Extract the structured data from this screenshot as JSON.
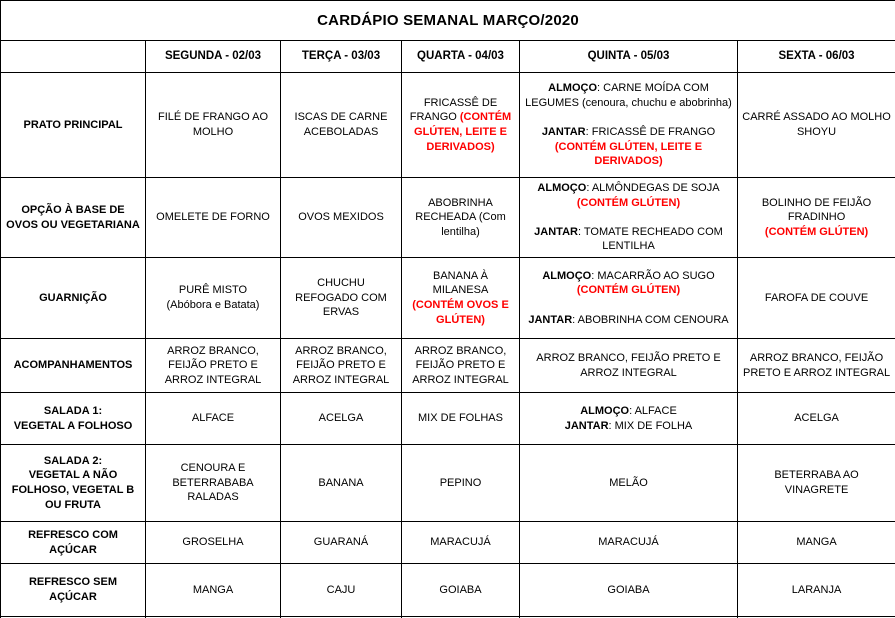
{
  "title": "CARDÁPIO SEMANAL MARÇO/2020",
  "colors": {
    "alert_red": "#ff0000",
    "text": "#000000",
    "border": "#000000",
    "background": "#ffffff"
  },
  "header": [
    "",
    "SEGUNDA - 02/03",
    "TERÇA - 03/03",
    "QUARTA - 04/03",
    "QUINTA - 05/03",
    "SEXTA - 06/03"
  ],
  "rows": [
    {
      "label": [
        {
          "t": "PRATO PRINCIPAL"
        }
      ],
      "cells": [
        [
          {
            "t": "FILÉ DE FRANGO AO MOLHO"
          }
        ],
        [
          {
            "t": "ISCAS DE CARNE ACEBOLADAS"
          }
        ],
        [
          {
            "t": "FRICASSÊ DE FRANGO "
          },
          {
            "t": "(CONTÉM GLÚTEN, LEITE E DERIVADOS)",
            "r": 1
          }
        ],
        [
          {
            "t": "ALMOÇO",
            "b": 1
          },
          {
            "t": ": CARNE MOÍDA COM LEGUMES  (cenoura, chuchu e abobrinha)"
          },
          {
            "br": 2
          },
          {
            "t": "JANTAR",
            "b": 1
          },
          {
            "t": ": FRICASSÊ DE FRANGO"
          },
          {
            "br": 1
          },
          {
            "t": "(CONTÉM GLÚTEN, LEITE E DERIVADOS)",
            "r": 1
          }
        ],
        [
          {
            "t": "CARRÉ ASSADO AO MOLHO SHOYU"
          }
        ]
      ]
    },
    {
      "label": [
        {
          "t": "OPÇÃO À BASE DE OVOS OU VEGETARIANA"
        }
      ],
      "cells": [
        [
          {
            "t": "OMELETE DE FORNO"
          }
        ],
        [
          {
            "t": "OVOS MEXIDOS"
          }
        ],
        [
          {
            "t": "ABOBRINHA RECHEADA    (Com lentilha)"
          }
        ],
        [
          {
            "t": "ALMOÇO",
            "b": 1
          },
          {
            "t": ": ALMÔNDEGAS DE SOJA"
          },
          {
            "br": 1
          },
          {
            "t": "(CONTÉM GLÚTEN)",
            "r": 1
          },
          {
            "br": 2
          },
          {
            "t": "JANTAR",
            "b": 1
          },
          {
            "t": ": TOMATE RECHEADO COM LENTILHA"
          }
        ],
        [
          {
            "t": "BOLINHO DE FEIJÃO FRADINHO"
          },
          {
            "br": 1
          },
          {
            "t": "(CONTÉM GLÚTEN)",
            "r": 1
          }
        ]
      ]
    },
    {
      "label": [
        {
          "t": "GUARNIÇÃO"
        }
      ],
      "cells": [
        [
          {
            "t": "PURÊ MISTO"
          },
          {
            "br": 1
          },
          {
            "t": "(Abóbora e Batata)"
          }
        ],
        [
          {
            "t": "CHUCHU REFOGADO COM ERVAS"
          }
        ],
        [
          {
            "t": "BANANA À MILANESA"
          },
          {
            "br": 1
          },
          {
            "t": "(CONTÉM OVOS E GLÚTEN)",
            "r": 1
          }
        ],
        [
          {
            "t": "ALMOÇO",
            "b": 1
          },
          {
            "t": ": MACARRÃO AO SUGO"
          },
          {
            "br": 1
          },
          {
            "t": "(CONTÉM GLÚTEN)",
            "r": 1
          },
          {
            "br": 2
          },
          {
            "t": "JANTAR",
            "b": 1
          },
          {
            "t": ": ABOBRINHA COM CENOURA"
          }
        ],
        [
          {
            "t": "FAROFA DE COUVE"
          }
        ]
      ]
    },
    {
      "label": [
        {
          "t": "ACOMPANHAMENTOS"
        }
      ],
      "cells": [
        [
          {
            "t": "ARROZ BRANCO, FEIJÃO PRETO E ARROZ INTEGRAL"
          }
        ],
        [
          {
            "t": "ARROZ BRANCO, FEIJÃO PRETO E ARROZ INTEGRAL"
          }
        ],
        [
          {
            "t": "ARROZ BRANCO, FEIJÃO PRETO E ARROZ INTEGRAL"
          }
        ],
        [
          {
            "t": "ARROZ BRANCO, FEIJÃO PRETO E ARROZ INTEGRAL"
          }
        ],
        [
          {
            "t": "ARROZ BRANCO, FEIJÃO PRETO E ARROZ INTEGRAL"
          }
        ]
      ]
    },
    {
      "label": [
        {
          "t": "SALADA 1:"
        },
        {
          "br": 1
        },
        {
          "t": "VEGETAL A FOLHOSO"
        }
      ],
      "cells": [
        [
          {
            "t": "ALFACE"
          }
        ],
        [
          {
            "t": "ACELGA"
          }
        ],
        [
          {
            "t": "MIX DE FOLHAS"
          }
        ],
        [
          {
            "t": "ALMOÇO",
            "b": 1
          },
          {
            "t": ": ALFACE"
          },
          {
            "br": 1
          },
          {
            "t": "JANTAR",
            "b": 1
          },
          {
            "t": ": MIX DE FOLHA"
          }
        ],
        [
          {
            "t": "ACELGA"
          }
        ]
      ]
    },
    {
      "label": [
        {
          "t": "SALADA 2:"
        },
        {
          "br": 1
        },
        {
          "t": "VEGETAL A NÃO FOLHOSO, VEGETAL B OU FRUTA"
        }
      ],
      "cells": [
        [
          {
            "t": "CENOURA E BETERRABABA RALADAS"
          }
        ],
        [
          {
            "t": "BANANA"
          }
        ],
        [
          {
            "t": "PEPINO"
          }
        ],
        [
          {
            "t": "MELÃO"
          }
        ],
        [
          {
            "t": "BETERRABA AO VINAGRETE"
          }
        ]
      ]
    },
    {
      "label": [
        {
          "t": "REFRESCO COM AÇÚCAR"
        }
      ],
      "cells": [
        [
          {
            "t": "GROSELHA"
          }
        ],
        [
          {
            "t": "GUARANÁ"
          }
        ],
        [
          {
            "t": "MARACUJÁ"
          }
        ],
        [
          {
            "t": "MARACUJÁ"
          }
        ],
        [
          {
            "t": "MANGA"
          }
        ]
      ]
    },
    {
      "label": [
        {
          "t": "REFRESCO SEM AÇÚCAR"
        }
      ],
      "cells": [
        [
          {
            "t": "MANGA"
          }
        ],
        [
          {
            "t": "CAJU"
          }
        ],
        [
          {
            "t": "GOIABA"
          }
        ],
        [
          {
            "t": "GOIABA"
          }
        ],
        [
          {
            "t": "LARANJA"
          }
        ]
      ]
    },
    {
      "label": [],
      "cells": [
        [],
        [],
        [],
        [],
        []
      ]
    }
  ]
}
